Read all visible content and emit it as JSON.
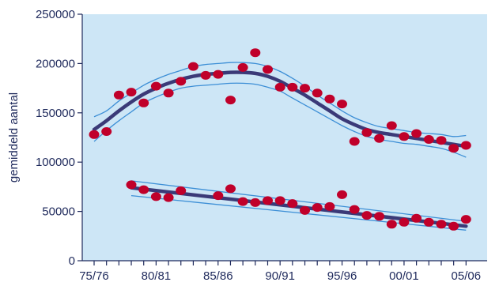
{
  "chart_data": {
    "type": "scatter",
    "title": "",
    "xlabel": "",
    "ylabel": "gemiddeld aantal",
    "ylim": [
      0,
      250000
    ],
    "yticks": [
      0,
      50000,
      100000,
      150000,
      200000,
      250000
    ],
    "ytick_labels": [
      "0",
      "50000",
      "100000",
      "150000",
      "200000",
      "250000"
    ],
    "xlim": [
      1975,
      2006
    ],
    "xtick_positions": [
      1975,
      1980,
      1985,
      1990,
      1995,
      2000,
      2005
    ],
    "xtick_labels": [
      "75/76",
      "80/81",
      "85/86",
      "90/91",
      "95/96",
      "00/01",
      "05/06"
    ],
    "grid": false,
    "legend": false,
    "colors": {
      "plot_background": "#cde6f6",
      "points": "#c0002a",
      "trend": "#3b3a78",
      "confidence_band": "#3d8fd6",
      "axis_text": "#1f2a5c"
    },
    "series": [
      {
        "points": [
          [
            1975,
            128000
          ],
          [
            1976,
            131000
          ],
          [
            1977,
            168000
          ],
          [
            1978,
            171000
          ],
          [
            1979,
            160000
          ],
          [
            1980,
            177000
          ],
          [
            1981,
            170000
          ],
          [
            1982,
            182000
          ],
          [
            1983,
            197000
          ],
          [
            1984,
            188000
          ],
          [
            1985,
            189000
          ],
          [
            1986,
            163000
          ],
          [
            1987,
            196000
          ],
          [
            1988,
            211000
          ],
          [
            1989,
            194000
          ],
          [
            1990,
            176000
          ],
          [
            1991,
            176000
          ],
          [
            1992,
            175000
          ],
          [
            1993,
            170000
          ],
          [
            1994,
            164000
          ],
          [
            1995,
            159000
          ],
          [
            1996,
            121000
          ],
          [
            1997,
            130000
          ],
          [
            1998,
            124000
          ],
          [
            1999,
            137000
          ],
          [
            2000,
            126000
          ],
          [
            2001,
            129000
          ],
          [
            2002,
            123000
          ],
          [
            2003,
            122000
          ],
          [
            2004,
            114000
          ],
          [
            2005,
            117000
          ]
        ],
        "trend": [
          [
            1975,
            133000
          ],
          [
            1976,
            142000
          ],
          [
            1977,
            152000
          ],
          [
            1978,
            161000
          ],
          [
            1979,
            169000
          ],
          [
            1980,
            175000
          ],
          [
            1981,
            180000
          ],
          [
            1982,
            184000
          ],
          [
            1983,
            187000
          ],
          [
            1984,
            189000
          ],
          [
            1985,
            190000
          ],
          [
            1986,
            191000
          ],
          [
            1987,
            191000
          ],
          [
            1988,
            190000
          ],
          [
            1989,
            187000
          ],
          [
            1990,
            182000
          ],
          [
            1991,
            175000
          ],
          [
            1992,
            168000
          ],
          [
            1993,
            160000
          ],
          [
            1994,
            152000
          ],
          [
            1995,
            144000
          ],
          [
            1996,
            138000
          ],
          [
            1997,
            133000
          ],
          [
            1998,
            130000
          ],
          [
            1999,
            128000
          ],
          [
            2000,
            126000
          ],
          [
            2001,
            124000
          ],
          [
            2002,
            122000
          ],
          [
            2003,
            120000
          ],
          [
            2004,
            118000
          ],
          [
            2005,
            116000
          ]
        ],
        "upper": [
          [
            1975,
            146000
          ],
          [
            1976,
            152000
          ],
          [
            1977,
            162000
          ],
          [
            1978,
            170000
          ],
          [
            1979,
            178000
          ],
          [
            1980,
            184000
          ],
          [
            1981,
            189000
          ],
          [
            1982,
            193000
          ],
          [
            1983,
            197000
          ],
          [
            1984,
            199000
          ],
          [
            1985,
            200000
          ],
          [
            1986,
            201000
          ],
          [
            1987,
            201000
          ],
          [
            1988,
            200000
          ],
          [
            1989,
            197000
          ],
          [
            1990,
            192000
          ],
          [
            1991,
            185000
          ],
          [
            1992,
            177000
          ],
          [
            1993,
            168000
          ],
          [
            1994,
            160000
          ],
          [
            1995,
            152000
          ],
          [
            1996,
            145000
          ],
          [
            1997,
            140000
          ],
          [
            1998,
            136000
          ],
          [
            1999,
            134000
          ],
          [
            2000,
            132000
          ],
          [
            2001,
            130000
          ],
          [
            2002,
            129000
          ],
          [
            2003,
            128000
          ],
          [
            2004,
            126000
          ],
          [
            2005,
            127000
          ]
        ],
        "lower": [
          [
            1975,
            121000
          ],
          [
            1976,
            132000
          ],
          [
            1977,
            142000
          ],
          [
            1978,
            151000
          ],
          [
            1979,
            160000
          ],
          [
            1980,
            166000
          ],
          [
            1981,
            171000
          ],
          [
            1982,
            175000
          ],
          [
            1983,
            177000
          ],
          [
            1984,
            178000
          ],
          [
            1985,
            179000
          ],
          [
            1986,
            180000
          ],
          [
            1987,
            180000
          ],
          [
            1988,
            179000
          ],
          [
            1989,
            176000
          ],
          [
            1990,
            172000
          ],
          [
            1991,
            165000
          ],
          [
            1992,
            158000
          ],
          [
            1993,
            151000
          ],
          [
            1994,
            144000
          ],
          [
            1995,
            137000
          ],
          [
            1996,
            131000
          ],
          [
            1997,
            126000
          ],
          [
            1998,
            123000
          ],
          [
            1999,
            121000
          ],
          [
            2000,
            119000
          ],
          [
            2001,
            118000
          ],
          [
            2002,
            116000
          ],
          [
            2003,
            114000
          ],
          [
            2004,
            110000
          ],
          [
            2005,
            105000
          ]
        ]
      },
      {
        "points": [
          [
            1978,
            77000
          ],
          [
            1979,
            72000
          ],
          [
            1980,
            65000
          ],
          [
            1981,
            64000
          ],
          [
            1982,
            71000
          ],
          [
            1985,
            66000
          ],
          [
            1986,
            73000
          ],
          [
            1987,
            60000
          ],
          [
            1988,
            59000
          ],
          [
            1989,
            61000
          ],
          [
            1990,
            61000
          ],
          [
            1991,
            58000
          ],
          [
            1992,
            51000
          ],
          [
            1993,
            54000
          ],
          [
            1994,
            55000
          ],
          [
            1995,
            67000
          ],
          [
            1996,
            52000
          ],
          [
            1997,
            46000
          ],
          [
            1998,
            45000
          ],
          [
            1999,
            37000
          ],
          [
            2000,
            39000
          ],
          [
            2001,
            43000
          ],
          [
            2002,
            39000
          ],
          [
            2003,
            37000
          ],
          [
            2004,
            35000
          ],
          [
            2005,
            42000
          ]
        ],
        "trend": [
          [
            1978,
            74000
          ],
          [
            2005,
            35000
          ]
        ],
        "upper": [
          [
            1978,
            81000
          ],
          [
            2005,
            40000
          ]
        ],
        "lower": [
          [
            1978,
            66000
          ],
          [
            2005,
            31000
          ]
        ]
      }
    ]
  }
}
